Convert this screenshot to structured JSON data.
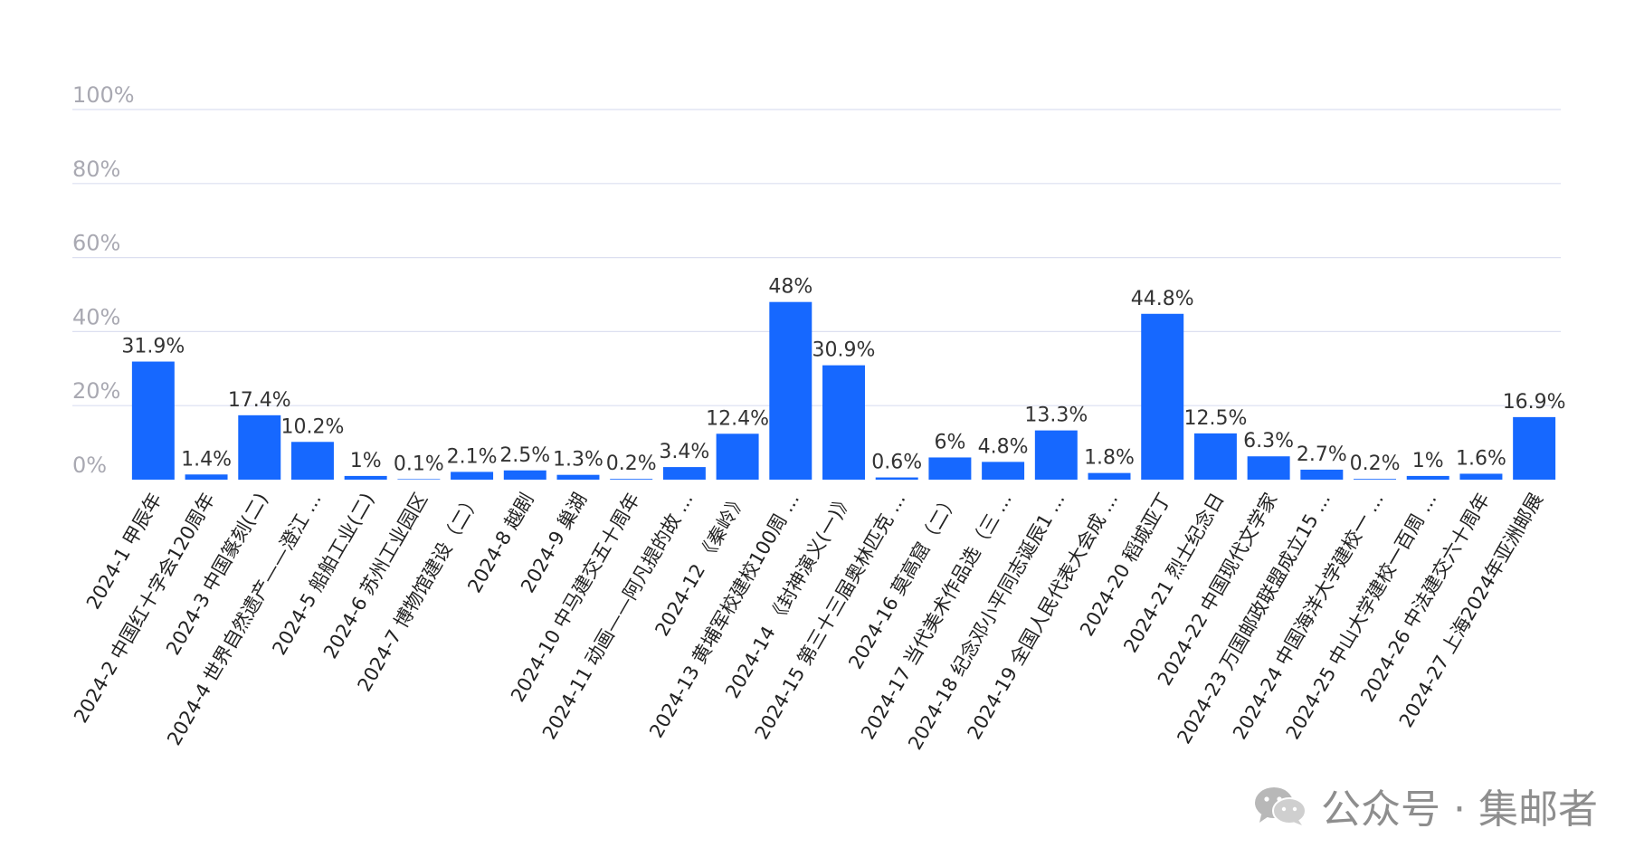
{
  "watermark": {
    "text": "公众号 · 集邮者",
    "icon": "wechat-icon"
  },
  "chart_data": {
    "type": "bar",
    "title": "",
    "xlabel": "",
    "ylabel": "",
    "ylim": [
      0,
      100
    ],
    "yticks": [
      "0%",
      "20%",
      "40%",
      "60%",
      "80%",
      "100%"
    ],
    "grid": true,
    "bar_color": "#1668ff",
    "categories": [
      "2024-1 甲辰年",
      "2024-2 中国红十字会120周年",
      "2024-3 中国篆刻(二)",
      "2024-4 世界自然遗产——澄江 ...",
      "2024-5 船舶工业(二)",
      "2024-6 苏州工业园区",
      "2024-7 博物馆建设（二）",
      "2024-8 越剧",
      "2024-9 巢湖",
      "2024-10 中马建交五十周年",
      "2024-11 动画——阿凡提的故 ...",
      "2024-12 《秦岭》",
      "2024-13 黄埔军校建校100周 ...",
      "2024-14 《封神演义(一)》",
      "2024-15 第三十三届奥林匹克 ...",
      "2024-16 莫高窟（二）",
      "2024-17 当代美术作品选（三 ...",
      "2024-18 纪念邓小平同志诞辰1 ...",
      "2024-19 全国人民代表大会成 ...",
      "2024-20 稻城亚丁",
      "2024-21 烈士纪念日",
      "2024-22 中国现代文学家",
      "2024-23 万国邮政联盟成立15 ...",
      "2024-24 中国海洋大学建校一 ...",
      "2024-25 中山大学建校一百周 ...",
      "2024-26 中法建交六十周年",
      "2024-27 上海2024年亚洲邮展"
    ],
    "values": [
      31.9,
      1.4,
      17.4,
      10.2,
      1,
      0.1,
      2.1,
      2.5,
      1.3,
      0.2,
      3.4,
      12.4,
      48,
      30.9,
      0.6,
      6,
      4.8,
      13.3,
      1.8,
      44.8,
      12.5,
      6.3,
      2.7,
      0.2,
      1,
      1.6,
      16.9
    ],
    "value_labels": [
      "31.9%",
      "1.4%",
      "17.4%",
      "10.2%",
      "1%",
      "0.1%",
      "2.1%",
      "2.5%",
      "1.3%",
      "0.2%",
      "3.4%",
      "12.4%",
      "48%",
      "30.9%",
      "0.6%",
      "6%",
      "4.8%",
      "13.3%",
      "1.8%",
      "44.8%",
      "12.5%",
      "6.3%",
      "2.7%",
      "0.2%",
      "1%",
      "1.6%",
      "16.9%"
    ]
  }
}
